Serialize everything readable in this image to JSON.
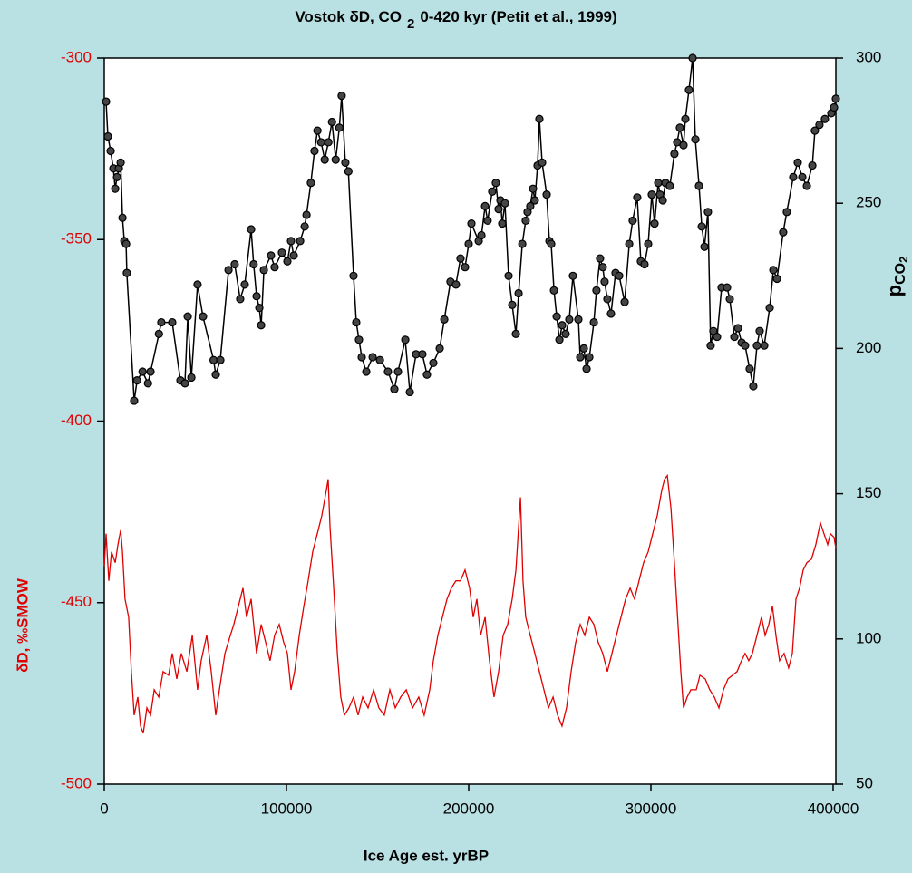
{
  "chart_data": {
    "type": "line",
    "title": [
      "Vostok  δD, CO",
      "2",
      "0-420 kyr (Petit et al., 1999)"
    ],
    "xlabel": "Ice Age est. yrBP",
    "ylabel": "δD, ‰SMOW",
    "y2label": [
      "p",
      "CO",
      "2"
    ],
    "xlim": [
      0,
      401500
    ],
    "xticks": [
      0,
      100000,
      200000,
      300000,
      400000
    ],
    "ylim": [
      -500,
      -300
    ],
    "yticks": [
      -500,
      -450,
      -400,
      -350,
      -300
    ],
    "y2lim": [
      50,
      300
    ],
    "y2ticks": [
      50,
      100,
      150,
      200,
      250,
      300
    ],
    "background": "#b9e0e3",
    "plot_background": "#ffffff",
    "ylabel_color": "#e00000",
    "series": [
      {
        "color": "#000000",
        "axis": "y2",
        "markers": true,
        "x": [
          1000,
          2000,
          3500,
          5000,
          6000,
          7000,
          8000,
          9000,
          10000,
          11000,
          12000,
          12400,
          16400,
          18000,
          21000,
          24000,
          25400,
          30000,
          31300,
          37300,
          41800,
          44300,
          45800,
          47800,
          51200,
          54200,
          60000,
          61200,
          63700,
          68200,
          71600,
          74600,
          77100,
          80600,
          82000,
          83600,
          85100,
          86100,
          87600,
          91500,
          93500,
          97500,
          100500,
          102500,
          104000,
          107500,
          110000,
          111000,
          113400,
          115400,
          117000,
          119000,
          121000,
          123000,
          125000,
          127000,
          129000,
          130300,
          132300,
          134000,
          136800,
          138300,
          139800,
          141300,
          143800,
          147300,
          151300,
          155700,
          159200,
          161200,
          165200,
          167700,
          171100,
          174600,
          177100,
          180600,
          184100,
          186600,
          190000,
          193000,
          195500,
          198000,
          200000,
          201500,
          205500,
          207000,
          209000,
          210400,
          212900,
          214900,
          216400,
          217400,
          218400,
          219900,
          221900,
          223900,
          225900,
          227400,
          229400,
          231300,
          232300,
          233800,
          235300,
          236300,
          237800,
          238800,
          240300,
          242800,
          244300,
          245300,
          246800,
          248300,
          249800,
          251300,
          253200,
          255200,
          257200,
          260200,
          261200,
          263200,
          264700,
          266200,
          268700,
          270100,
          272100,
          273600,
          274600,
          276100,
          278100,
          280600,
          282600,
          285600,
          288100,
          290000,
          292500,
          294500,
          296500,
          298500,
          300500,
          302000,
          304000,
          305000,
          306500,
          308000,
          310400,
          312900,
          314400,
          315900,
          317900,
          318900,
          320900,
          322900,
          324400,
          326400,
          327900,
          329400,
          331300,
          332800,
          334300,
          336300,
          338800,
          341800,
          343300,
          345800,
          347800,
          349800,
          351700,
          354200,
          356200,
          358200,
          359700,
          362200,
          365200,
          367200,
          369200,
          372600,
          374600,
          378100,
          380600,
          383100,
          385600,
          388600,
          390000,
          392500,
          395500,
          399000,
          400500,
          401500
        ],
        "values": [
          285,
          273,
          268,
          262,
          255,
          259,
          262,
          264,
          245,
          237,
          236,
          226,
          182,
          189,
          192,
          188,
          192,
          205,
          209,
          209,
          189,
          188,
          211,
          190,
          222,
          211,
          196,
          191,
          196,
          227,
          229,
          217,
          222,
          241,
          229,
          218,
          214,
          208,
          227,
          232,
          228,
          233,
          230,
          237,
          232,
          237,
          242,
          246,
          257,
          268,
          275,
          271,
          265,
          271,
          278,
          265,
          276,
          287,
          264,
          261,
          225,
          209,
          203,
          197,
          192,
          197,
          196,
          192,
          186,
          192,
          203,
          185,
          198,
          198,
          191,
          195,
          200,
          210,
          223,
          222,
          231,
          228,
          236,
          243,
          237,
          239,
          249,
          244,
          254,
          257,
          248,
          251,
          243,
          250,
          225,
          215,
          205,
          219,
          236,
          244,
          247,
          249,
          255,
          251,
          263,
          279,
          264,
          253,
          237,
          236,
          220,
          211,
          203,
          208,
          205,
          210,
          225,
          210,
          197,
          200,
          193,
          197,
          209,
          220,
          231,
          228,
          223,
          217,
          212,
          226,
          225,
          216,
          236,
          244,
          252,
          230,
          229,
          236,
          253,
          243,
          257,
          253,
          251,
          257,
          256,
          267,
          271,
          276,
          270,
          279,
          289,
          300,
          272,
          256,
          242,
          235,
          247,
          201,
          206,
          204,
          221,
          221,
          217,
          204,
          207,
          202,
          201,
          193,
          187,
          201,
          206,
          201,
          214,
          227,
          224,
          240,
          247,
          259,
          264,
          259,
          256,
          263,
          275,
          277,
          279,
          281,
          283,
          286
        ]
      },
      {
        "color": "#e00000",
        "axis": "y",
        "markers": false,
        "x": [
          0,
          1000,
          2500,
          4000,
          6000,
          7500,
          9000,
          10000,
          11400,
          13400,
          14900,
          16400,
          18400,
          19900,
          21400,
          23400,
          25400,
          27400,
          29900,
          32300,
          35300,
          37300,
          39800,
          42300,
          45300,
          48300,
          51200,
          53200,
          56200,
          58700,
          61200,
          63200,
          66200,
          69200,
          71100,
          73600,
          76100,
          78100,
          80600,
          83600,
          86100,
          88600,
          91000,
          93500,
          96000,
          98500,
          100500,
          102500,
          104500,
          107000,
          109500,
          111900,
          114400,
          116900,
          119400,
          121900,
          122900,
          123900,
          125900,
          127900,
          129800,
          131800,
          134300,
          136800,
          139300,
          141800,
          144800,
          147800,
          150700,
          153700,
          156700,
          159700,
          162700,
          165700,
          169200,
          172600,
          175600,
          178600,
          180600,
          183100,
          185600,
          188100,
          190500,
          193000,
          195500,
          198000,
          200500,
          202500,
          204500,
          206500,
          209000,
          211400,
          213900,
          216400,
          218900,
          221400,
          223900,
          225900,
          227400,
          228400,
          229800,
          231300,
          233800,
          236300,
          238800,
          241300,
          243800,
          246300,
          248800,
          251200,
          253700,
          256200,
          258700,
          261200,
          263700,
          266200,
          268700,
          271100,
          273600,
          276100,
          278600,
          281100,
          283600,
          286100,
          288600,
          291000,
          293500,
          296000,
          298500,
          301000,
          303500,
          306000,
          307500,
          309000,
          311000,
          312900,
          314900,
          316400,
          317900,
          319900,
          321900,
          324900,
          326900,
          329800,
          332300,
          334800,
          337300,
          339800,
          342300,
          344800,
          347300,
          349700,
          351700,
          353700,
          355700,
          358200,
          360700,
          362700,
          364700,
          366700,
          368600,
          370600,
          373100,
          375600,
          377600,
          379600,
          381600,
          383600,
          385600,
          388100,
          390500,
          393000,
          395000,
          397000,
          398500,
          400500,
          401500
        ],
        "values": [
          -440,
          -431,
          -444,
          -436,
          -439,
          -434,
          -430,
          -436,
          -449,
          -454,
          -469,
          -481,
          -476,
          -484,
          -486,
          -479,
          -481,
          -474,
          -476,
          -469,
          -470,
          -464,
          -471,
          -464,
          -469,
          -459,
          -474,
          -466,
          -459,
          -469,
          -481,
          -474,
          -464,
          -459,
          -456,
          -451,
          -446,
          -454,
          -449,
          -464,
          -456,
          -461,
          -466,
          -459,
          -456,
          -461,
          -464,
          -474,
          -469,
          -459,
          -451,
          -444,
          -436,
          -431,
          -426,
          -419,
          -416,
          -429,
          -446,
          -464,
          -476,
          -481,
          -479,
          -476,
          -481,
          -476,
          -479,
          -474,
          -479,
          -481,
          -474,
          -479,
          -476,
          -474,
          -479,
          -476,
          -481,
          -474,
          -466,
          -459,
          -454,
          -449,
          -446,
          -444,
          -444,
          -441,
          -446,
          -454,
          -449,
          -459,
          -454,
          -466,
          -476,
          -469,
          -459,
          -456,
          -449,
          -441,
          -429,
          -421,
          -444,
          -454,
          -459,
          -464,
          -469,
          -474,
          -479,
          -476,
          -481,
          -484,
          -479,
          -469,
          -461,
          -456,
          -459,
          -454,
          -456,
          -461,
          -464,
          -469,
          -464,
          -459,
          -454,
          -449,
          -446,
          -449,
          -444,
          -439,
          -436,
          -431,
          -426,
          -419,
          -416,
          -415,
          -424,
          -439,
          -456,
          -469,
          -479,
          -476,
          -474,
          -474,
          -470,
          -471,
          -474,
          -476,
          -479,
          -474,
          -471,
          -470,
          -469,
          -466,
          -464,
          -466,
          -464,
          -459,
          -454,
          -459,
          -456,
          -451,
          -459,
          -466,
          -464,
          -468,
          -464,
          -449,
          -446,
          -441,
          -439,
          -438,
          -434,
          -428,
          -431,
          -434,
          -431,
          -432,
          -435
        ]
      }
    ]
  }
}
